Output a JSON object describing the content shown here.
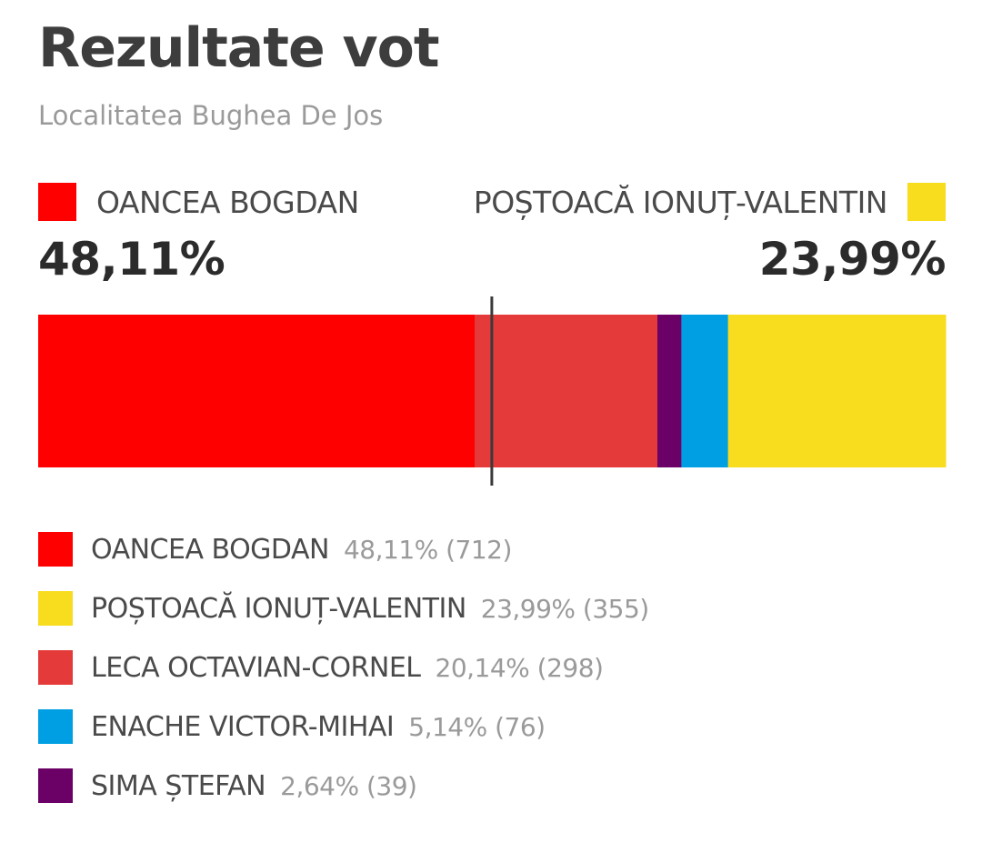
{
  "title": "Rezultate vot",
  "subtitle": "Localitatea Bughea De Jos",
  "leaders": {
    "left": {
      "name": "OANCEA BOGDAN",
      "percent": "48,11%",
      "color": "#ff0000"
    },
    "right": {
      "name": "POȘTOACĂ IONUȚ-VALENTIN",
      "percent": "23,99%",
      "color": "#f7dd1e"
    }
  },
  "chart_data": {
    "type": "bar",
    "stacked": true,
    "orientation": "horizontal",
    "majority_marker": 50,
    "segments": [
      {
        "name": "OANCEA BOGDAN",
        "value": 48.11,
        "votes": 712,
        "color": "#ff0000"
      },
      {
        "name": "LECA OCTAVIAN-CORNEL",
        "value": 20.14,
        "votes": 298,
        "color": "#e53a3a"
      },
      {
        "name": "SIMA ȘTEFAN",
        "value": 2.64,
        "votes": 39,
        "color": "#6b0066"
      },
      {
        "name": "ENACHE VICTOR-MIHAI",
        "value": 5.14,
        "votes": 76,
        "color": "#009fe3"
      },
      {
        "name": "POȘTOACĂ IONUȚ-VALENTIN",
        "value": 23.99,
        "votes": 355,
        "color": "#f7dd1e"
      }
    ]
  },
  "legend": [
    {
      "name": "OANCEA BOGDAN",
      "value_text": "48,11% (712)",
      "color": "#ff0000"
    },
    {
      "name": "POȘTOACĂ IONUȚ-VALENTIN",
      "value_text": "23,99% (355)",
      "color": "#f7dd1e"
    },
    {
      "name": "LECA OCTAVIAN-CORNEL",
      "value_text": "20,14% (298)",
      "color": "#e53a3a"
    },
    {
      "name": "ENACHE VICTOR-MIHAI",
      "value_text": "5,14% (76)",
      "color": "#009fe3"
    },
    {
      "name": "SIMA ȘTEFAN",
      "value_text": "2,64% (39)",
      "color": "#6b0066"
    }
  ]
}
